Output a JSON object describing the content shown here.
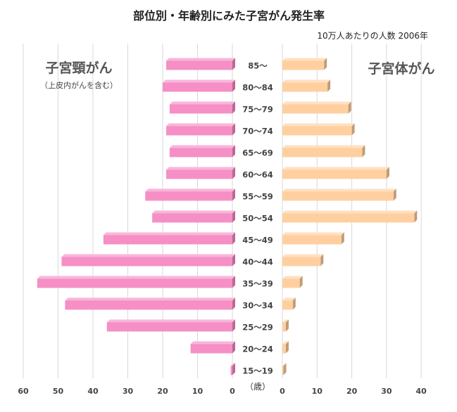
{
  "chart_data": {
    "type": "bar",
    "title": "部位別・年齢別にみた子宮がん発生率",
    "subtitle": "10万人あたりの人数 2006年",
    "unit_label": "（歳）",
    "categories": [
      "85〜",
      "80〜84",
      "75〜79",
      "70〜74",
      "65〜69",
      "60〜64",
      "55〜59",
      "50〜54",
      "45〜49",
      "40〜44",
      "35〜39",
      "30〜34",
      "25〜29",
      "20〜24",
      "15〜19"
    ],
    "left_ticks": [
      "60",
      "50",
      "40",
      "30",
      "20",
      "10",
      "0"
    ],
    "right_ticks": [
      "0",
      "10",
      "20",
      "30",
      "40"
    ],
    "left_xlim": [
      0,
      60
    ],
    "right_xlim": [
      0,
      40
    ],
    "series": [
      {
        "name": "子宮頸がん",
        "note": "（上皮内がんを含む）",
        "side": "left",
        "color": "#f58fc5",
        "values": [
          19,
          20,
          18,
          19,
          18,
          19,
          25,
          23,
          37,
          49,
          56,
          48,
          36,
          12,
          0.5
        ]
      },
      {
        "name": "子宮体がん",
        "side": "right",
        "color": "#ffcfa0",
        "values": [
          12,
          13,
          19,
          20,
          23,
          30,
          32,
          38,
          17,
          11,
          5,
          3,
          1,
          1,
          0.3
        ]
      }
    ],
    "grid": true
  }
}
